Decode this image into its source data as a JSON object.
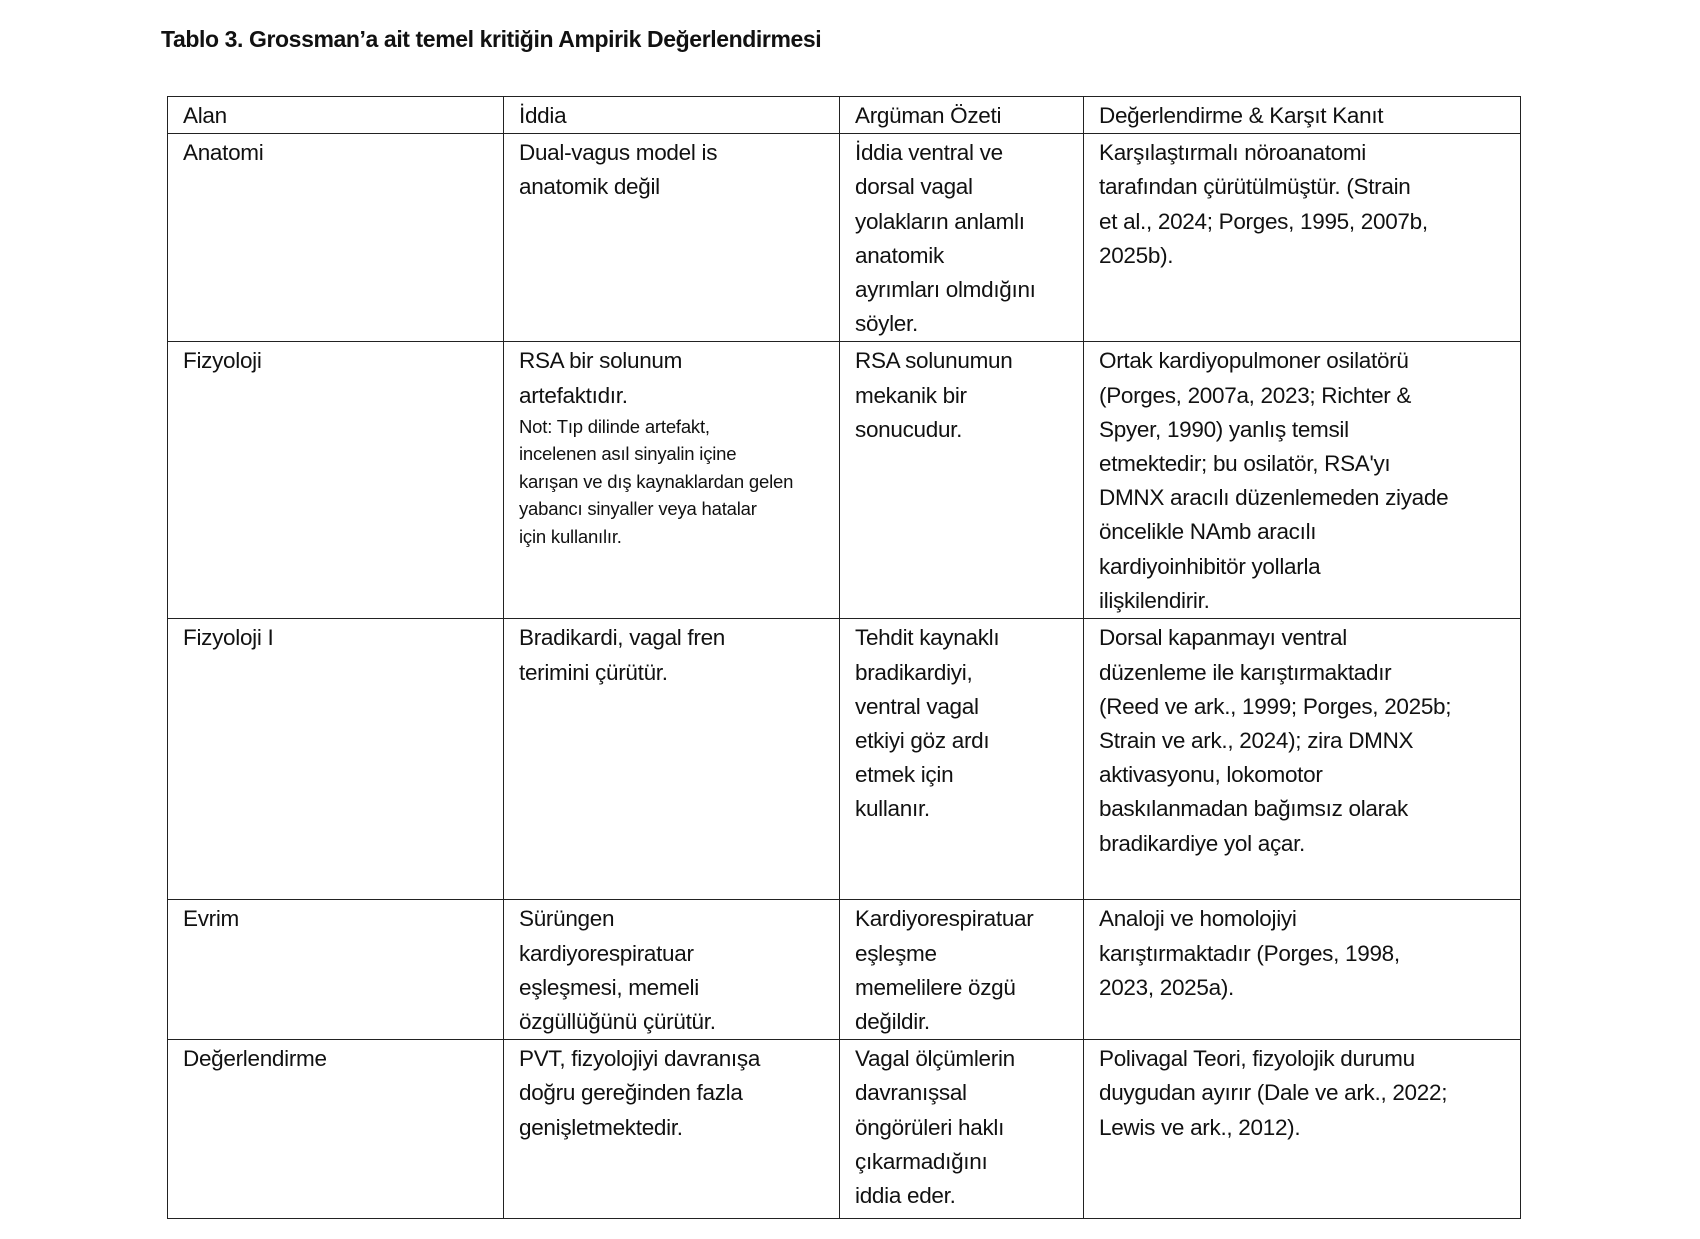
{
  "title": "Tablo 3. Grossman’a ait temel kritiğin Ampirik Değerlendirmesi",
  "headers": [
    "Alan",
    "İddia",
    "Argüman Özeti",
    "Değerlendirme & Karşıt Kanıt"
  ],
  "rows": [
    {
      "alan": [
        "Anatomi"
      ],
      "iddia": [
        "Dual-vagus model is",
        "anatomik değil"
      ],
      "note": [],
      "ozet": [
        "İddia ventral ve",
        "dorsal vagal",
        "yolakların anlamlı",
        "anatomik",
        "ayrımları olmdığını",
        "söyler."
      ],
      "deger": [
        "Karşılaştırmalı nöroanatomi",
        "tarafından  çürütülmüştür. (Strain",
        "et al., 2024; Porges, 1995, 2007b,",
        "2025b)."
      ]
    },
    {
      "alan": [
        "Fizyoloji"
      ],
      "iddia": [
        "RSA bir solunum",
        "artefaktıdır."
      ],
      "note": [
        "Not: Tıp dilinde artefakt,",
        "incelenen asıl sinyalin içine",
        "karışan ve dış kaynaklardan gelen",
        "yabancı sinyaller veya hatalar",
        "için kullanılır."
      ],
      "ozet": [
        "RSA solunumun",
        "mekanik bir",
        "sonucudur."
      ],
      "deger": [
        "Ortak kardiyopulmoner osilatörü",
        "(Porges, 2007a, 2023; Richter &",
        "Spyer, 1990) yanlış temsil",
        "etmektedir; bu osilatör, RSA'yı",
        "DMNX aracılı düzenlemeden ziyade",
        "öncelikle NAmb aracılı",
        "kardiyoinhibitör yollarla",
        "ilişkilendirir."
      ]
    },
    {
      "alan": [
        "Fizyoloji I"
      ],
      "iddia": [
        "Bradikardi, vagal fren",
        "terimini çürütür."
      ],
      "note": [],
      "ozet": [
        "Tehdit kaynaklı",
        "bradikardiyi,",
        "ventral vagal",
        "etkiyi göz ardı",
        "etmek için",
        "kullanır."
      ],
      "deger": [
        "Dorsal kapanmayı ventral",
        "düzenleme ile karıştırmaktadır",
        "(Reed ve ark., 1999; Porges, 2025b;",
        "Strain ve ark., 2024); zira DMNX",
        "aktivasyonu, lokomotor",
        "baskılanmadan bağımsız olarak",
        "bradikardiye yol açar."
      ]
    },
    {
      "alan": [
        "Evrim"
      ],
      "iddia": [
        "Sürüngen",
        "kardiyorespiratuar",
        "eşleşmesi, memeli",
        "özgüllüğünü çürütür."
      ],
      "note": [],
      "ozet": [
        "Kardiyorespiratuar",
        "eşleşme",
        "memelilere özgü",
        "değildir."
      ],
      "deger": [
        "Analoji ve homolojiyi",
        "karıştırmaktadır (Porges, 1998,",
        "2023, 2025a)."
      ]
    },
    {
      "alan": [
        "Değerlendirme"
      ],
      "iddia": [
        "PVT, fizyolojiyi davranışa",
        "doğru gereğinden fazla",
        "genişletmektedir."
      ],
      "note": [],
      "ozet": [
        "Vagal ölçümlerin",
        "davranışsal",
        "öngörüleri haklı",
        "çıkarmadığını",
        "iddia eder."
      ],
      "deger": [
        "Polivagal Teori, fizyolojik durumu",
        "duygudan ayırır (Dale ve ark., 2022;",
        "Lewis ve ark., 2012)."
      ]
    }
  ]
}
